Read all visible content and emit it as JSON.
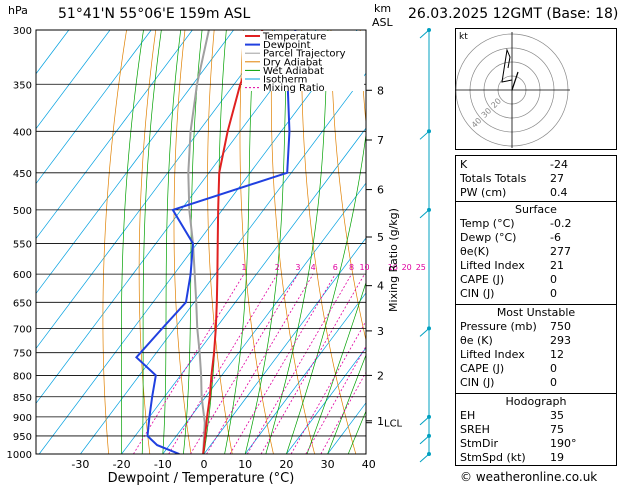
{
  "header": {
    "hpa_label": "hPa",
    "location": "51°41'N 55°06'E 159m ASL",
    "km_label": "km",
    "asl_label": "ASL",
    "datetime": "26.03.2025 12GMT (Base: 18)"
  },
  "chart_data": {
    "type": "skew-t",
    "xlabel": "Dewpoint / Temperature (°C)",
    "ylabel_right": "Mixing Ratio (g/kg)",
    "pressure_levels": [
      300,
      350,
      400,
      450,
      500,
      550,
      600,
      650,
      700,
      750,
      800,
      850,
      900,
      950,
      1000
    ],
    "temp_ticks": [
      -30,
      -20,
      -10,
      0,
      10,
      20,
      30,
      40
    ],
    "km_ticks": [
      {
        "km": "8",
        "p": 356
      },
      {
        "km": "7",
        "p": 410
      },
      {
        "km": "6",
        "p": 472
      },
      {
        "km": "5",
        "p": 540
      },
      {
        "km": "4",
        "p": 620
      },
      {
        "km": "3",
        "p": 705
      },
      {
        "km": "2",
        "p": 800
      },
      {
        "km": "1",
        "p": 910
      }
    ],
    "lcl_label": "LCL",
    "lcl_pressure": 915,
    "mixing_ratio_labels": [
      "1",
      "2",
      "3",
      "4",
      "6",
      "8",
      "10",
      "16",
      "20",
      "25"
    ],
    "mixing_ratio_values": [
      1,
      2,
      3,
      4,
      6,
      8,
      10,
      16,
      20,
      25
    ],
    "legend": [
      "Temperature",
      "Dewpoint",
      "Parcel Trajectory",
      "Dry Adiabat",
      "Wet Adiabat",
      "Isotherm",
      "Mixing Ratio"
    ],
    "temperature": {
      "p": [
        1000,
        950,
        900,
        850,
        800,
        750,
        700,
        650,
        600,
        550,
        500,
        450,
        400,
        350,
        300
      ],
      "t": [
        -0.2,
        -3,
        -6,
        -9,
        -12.5,
        -16,
        -20,
        -24.5,
        -29.5,
        -35,
        -41,
        -47.5,
        -53,
        -58.5,
        -63
      ]
    },
    "dewpoint": {
      "p": [
        1000,
        975,
        950,
        900,
        850,
        800,
        760,
        700,
        650,
        600,
        550,
        500,
        450,
        400,
        350,
        300
      ],
      "t": [
        -6,
        -13,
        -17,
        -20,
        -23,
        -26,
        -34,
        -33,
        -32,
        -36,
        -41,
        -52,
        -31,
        -38,
        -47,
        -55
      ]
    },
    "parcel": {
      "p": [
        1000,
        915,
        850,
        800,
        750,
        700,
        650,
        600,
        550,
        500,
        450,
        400,
        350,
        300
      ],
      "t": [
        -0.2,
        -5.5,
        -11,
        -15,
        -19.5,
        -24.5,
        -29.5,
        -35,
        -41,
        -48,
        -55,
        -62,
        -69,
        -76
      ]
    },
    "xlim": [
      -40,
      40
    ]
  },
  "hodograph": {
    "label": "kt",
    "ring_labels": [
      "20",
      "30",
      "40"
    ]
  },
  "indices": [
    {
      "k": "K",
      "v": "-24"
    },
    {
      "k": "Totals Totals",
      "v": "27"
    },
    {
      "k": "PW (cm)",
      "v": "0.4"
    }
  ],
  "surface": {
    "title": "Surface",
    "rows": [
      {
        "k": "Temp (°C)",
        "v": "-0.2"
      },
      {
        "k": "Dewp (°C)",
        "v": "-6"
      },
      {
        "k": "θe(K)",
        "v": "277"
      },
      {
        "k": "Lifted Index",
        "v": "21"
      },
      {
        "k": "CAPE (J)",
        "v": "0"
      },
      {
        "k": "CIN (J)",
        "v": "0"
      }
    ]
  },
  "unstable": {
    "title": "Most Unstable",
    "rows": [
      {
        "k": "Pressure (mb)",
        "v": "750"
      },
      {
        "k": "θe (K)",
        "v": "293"
      },
      {
        "k": "Lifted Index",
        "v": "12"
      },
      {
        "k": "CAPE (J)",
        "v": "0"
      },
      {
        "k": "CIN (J)",
        "v": "0"
      }
    ]
  },
  "hodo_table": {
    "title": "Hodograph",
    "rows": [
      {
        "k": "EH",
        "v": "35"
      },
      {
        "k": "SREH",
        "v": "75"
      },
      {
        "k": "StmDir",
        "v": "190°"
      },
      {
        "k": "StmSpd (kt)",
        "v": "19"
      }
    ]
  },
  "footer": "© weatheronline.co.uk",
  "colors": {
    "temperature": "#e02020",
    "dewpoint": "#2040e0",
    "parcel": "#a0a0a0",
    "dry_adiabat": "#e08000",
    "wet_adiabat": "#00a000",
    "isotherm": "#00a0e0",
    "mixing_ratio": "#e000a0",
    "wind": "#00a0c0"
  }
}
